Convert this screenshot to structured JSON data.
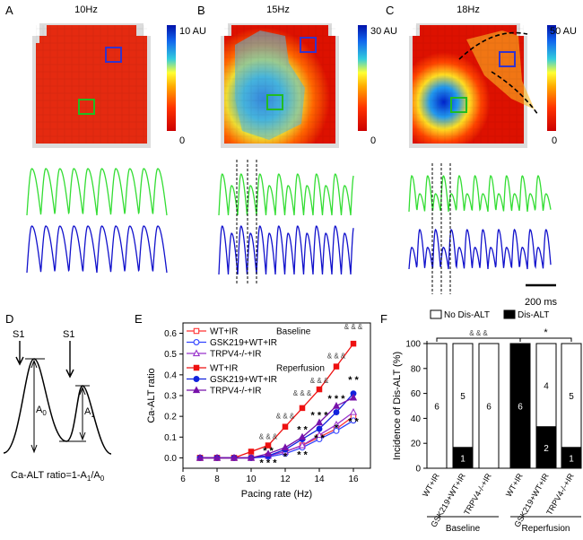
{
  "panels": {
    "A": {
      "letter": "A",
      "title": "10Hz",
      "scale_max": "10 AU",
      "scale_min": "0"
    },
    "B": {
      "letter": "B",
      "title": "15Hz",
      "scale_max": "30 AU",
      "scale_min": "0"
    },
    "C": {
      "letter": "C",
      "title": "18Hz",
      "scale_max": "50 AU",
      "scale_min": "0"
    },
    "D": {
      "letter": "D",
      "stim1": "S1",
      "stim2": "S1",
      "a0": "A",
      "a0_sub": "0",
      "a1": "A",
      "a1_sub": "1",
      "formula_a": "Ca-ALT ratio=1-A",
      "formula_sub1": "1",
      "formula_b": "/A",
      "formula_sub0": "0"
    },
    "E": {
      "letter": "E"
    },
    "F": {
      "letter": "F"
    }
  },
  "scale_bar": "200 ms",
  "chart_data": [
    {
      "type": "line",
      "title": "",
      "xlabel": "Pacing rate (Hz)",
      "ylabel": "Ca-ALT ratio",
      "xlim": [
        6,
        17
      ],
      "ylim": [
        -0.05,
        0.65
      ],
      "x_ticks": [
        "6",
        "8",
        "10",
        "12",
        "14",
        "16"
      ],
      "y_ticks": [
        "0.0",
        "0.1",
        "0.2",
        "0.3",
        "0.4",
        "0.5",
        "0.6"
      ],
      "x": [
        7,
        8,
        9,
        10,
        11,
        12,
        13,
        14,
        15,
        16
      ],
      "legend_titles": {
        "baseline": "Baseline",
        "reperfusion": "Reperfusion"
      },
      "series": [
        {
          "name": "WT+IR",
          "group": "baseline",
          "marker": "open-square",
          "color": "#ff3333",
          "values": [
            0.0,
            0.0,
            0.0,
            0.0,
            0.01,
            0.03,
            0.06,
            0.1,
            0.14,
            0.2
          ]
        },
        {
          "name": "GSK219+WT+IR",
          "group": "baseline",
          "marker": "open-circle",
          "color": "#3344ff",
          "values": [
            0.0,
            0.0,
            0.0,
            0.0,
            0.005,
            0.02,
            0.05,
            0.09,
            0.13,
            0.18
          ]
        },
        {
          "name": "TRPV4-/-+IR",
          "group": "baseline",
          "marker": "open-triangle",
          "color": "#9933cc",
          "values": [
            0.0,
            0.0,
            0.0,
            0.0,
            0.01,
            0.03,
            0.06,
            0.11,
            0.16,
            0.22
          ]
        },
        {
          "name": "WT+IR",
          "group": "reperfusion",
          "marker": "filled-square",
          "color": "#ee1111",
          "values": [
            0.0,
            0.0,
            0.0,
            0.03,
            0.06,
            0.15,
            0.24,
            0.33,
            0.44,
            0.55
          ]
        },
        {
          "name": "GSK219+WT+IR",
          "group": "reperfusion",
          "marker": "filled-circle",
          "color": "#1122dd",
          "values": [
            0.0,
            0.0,
            0.0,
            0.0,
            0.01,
            0.04,
            0.09,
            0.14,
            0.22,
            0.31
          ]
        },
        {
          "name": "TRPV4-/-+IR",
          "group": "reperfusion",
          "marker": "filled-triangle",
          "color": "#7711aa",
          "values": [
            0.0,
            0.0,
            0.0,
            0.0,
            0.02,
            0.05,
            0.1,
            0.17,
            0.25,
            0.29
          ]
        }
      ],
      "annotations": [
        {
          "text": "& & &",
          "x": 11,
          "y": 0.09
        },
        {
          "text": "& & &",
          "x": 12,
          "y": 0.19
        },
        {
          "text": "& & &",
          "x": 13,
          "y": 0.3
        },
        {
          "text": "& & &",
          "x": 14,
          "y": 0.36
        },
        {
          "text": "& & &",
          "x": 15,
          "y": 0.48
        },
        {
          "text": "& & &",
          "x": 16,
          "y": 0.62
        },
        {
          "text": "* *",
          "x": 11,
          "y": 0.02
        },
        {
          "text": "* * *",
          "x": 11,
          "y": -0.04
        },
        {
          "text": "*",
          "x": 12,
          "y": -0.01
        },
        {
          "text": "* *",
          "x": 13,
          "y": 0.12
        },
        {
          "text": "* * *",
          "x": 14,
          "y": 0.19
        },
        {
          "text": "* * *",
          "x": 15,
          "y": 0.27
        },
        {
          "text": "* *",
          "x": 16,
          "y": 0.36
        },
        {
          "text": "* *",
          "x": 13,
          "y": 0.0
        },
        {
          "text": "* *",
          "x": 14,
          "y": 0.08
        },
        {
          "text": "*",
          "x": 15,
          "y": 0.13
        },
        {
          "text": "* *",
          "x": 16,
          "y": 0.16
        }
      ]
    },
    {
      "type": "bar",
      "stacked": true,
      "title": "",
      "ylabel": "Incidence of Dis-ALT  (%)",
      "ylim": [
        0,
        100
      ],
      "y_ticks": [
        "0",
        "20",
        "40",
        "60",
        "80",
        "100"
      ],
      "categories": [
        "WT+IR",
        "GSK219+WT+IR",
        "TRPV4-/-+IR",
        "WT+IR",
        "GSK219+WT+IR",
        "TRPV4-/-+IR"
      ],
      "groups": [
        {
          "label": "Baseline",
          "indices": [
            0,
            1,
            2
          ]
        },
        {
          "label": "Reperfusion",
          "indices": [
            3,
            4,
            5
          ]
        }
      ],
      "legend": [
        "No Dis-ALT",
        "Dis-ALT"
      ],
      "series": [
        {
          "name": "Dis-ALT",
          "color": "#000000",
          "values": [
            0,
            16.7,
            0,
            100,
            33.3,
            16.7
          ],
          "labels": [
            "",
            "1",
            "",
            "6",
            "2",
            "1"
          ]
        },
        {
          "name": "No Dis-ALT",
          "color": "#ffffff",
          "values": [
            100,
            83.3,
            100,
            0,
            66.7,
            83.3
          ],
          "labels": [
            "6",
            "5",
            "6",
            "",
            "4",
            "5"
          ]
        }
      ],
      "significance": [
        {
          "text": "& & &",
          "between": [
            0,
            3
          ]
        },
        {
          "text": "*",
          "between": [
            3,
            5
          ]
        }
      ]
    }
  ]
}
